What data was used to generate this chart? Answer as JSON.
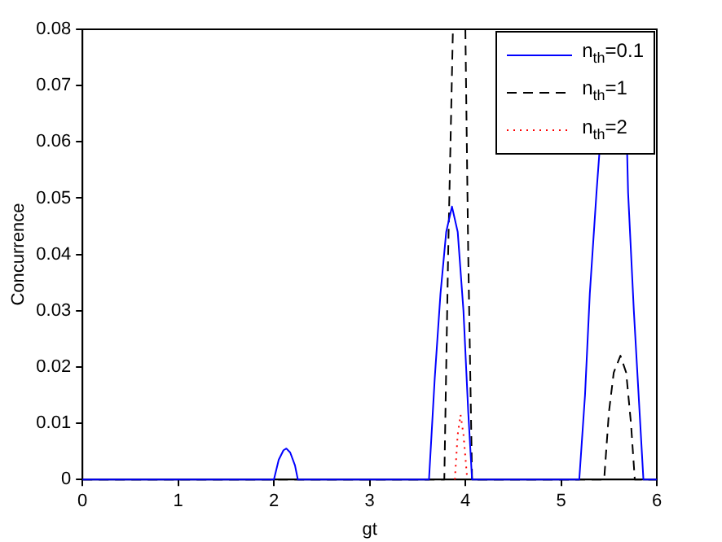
{
  "chart_data": {
    "type": "line",
    "xlabel": "gt",
    "ylabel": "Concurrence",
    "xlim": [
      0,
      6
    ],
    "xticks": [
      0,
      1,
      2,
      3,
      4,
      5,
      6
    ],
    "ylim": [
      0,
      0.08
    ],
    "yticks": [
      0,
      0.01,
      0.02,
      0.03,
      0.04,
      0.05,
      0.06,
      0.07,
      0.08
    ],
    "grid": false,
    "legend": "top right",
    "marker": "none",
    "series": [
      {
        "name": "n$_{th}$=0.1",
        "color": "#0000ff",
        "line_style": "solid",
        "x": [
          0,
          2.0,
          2.05,
          2.1,
          2.13,
          2.17,
          2.22,
          2.25,
          3.62,
          3.68,
          3.74,
          3.8,
          3.86,
          3.92,
          3.98,
          4.03,
          4.07,
          5.19,
          5.25,
          5.3,
          5.37,
          5.4,
          5.55,
          5.69,
          5.7,
          5.76,
          5.82,
          5.86,
          6
        ],
        "values": [
          0,
          0,
          0.0035,
          0.0052,
          0.0055,
          0.0048,
          0.0025,
          0,
          0,
          0.018,
          0.033,
          0.044,
          0.0485,
          0.044,
          0.03,
          0.012,
          0,
          0,
          0.015,
          0.033,
          0.051,
          0.058,
          null,
          0.058,
          0.051,
          0.03,
          0.012,
          0,
          0
        ]
      },
      {
        "name": "n$_{th}$=1",
        "color": "#000000",
        "line_style": "dashed",
        "x": [
          0,
          3.78,
          3.82,
          3.87,
          3.93,
          4.0,
          4.03,
          4.07,
          5.45,
          5.5,
          5.55,
          5.62,
          5.68,
          5.73,
          5.77,
          6
        ],
        "values": [
          0,
          0,
          0.04,
          0.08,
          null,
          0.08,
          0.04,
          0,
          0,
          0.012,
          0.019,
          0.022,
          0.019,
          0.01,
          0,
          0
        ]
      },
      {
        "name": "n$_{th}$=2",
        "color": "#ff0000",
        "line_style": "dotted",
        "x": [
          3.89,
          3.92,
          3.95,
          3.98,
          4.02
        ],
        "values": [
          0,
          0.008,
          0.0115,
          0.008,
          0
        ]
      }
    ]
  }
}
